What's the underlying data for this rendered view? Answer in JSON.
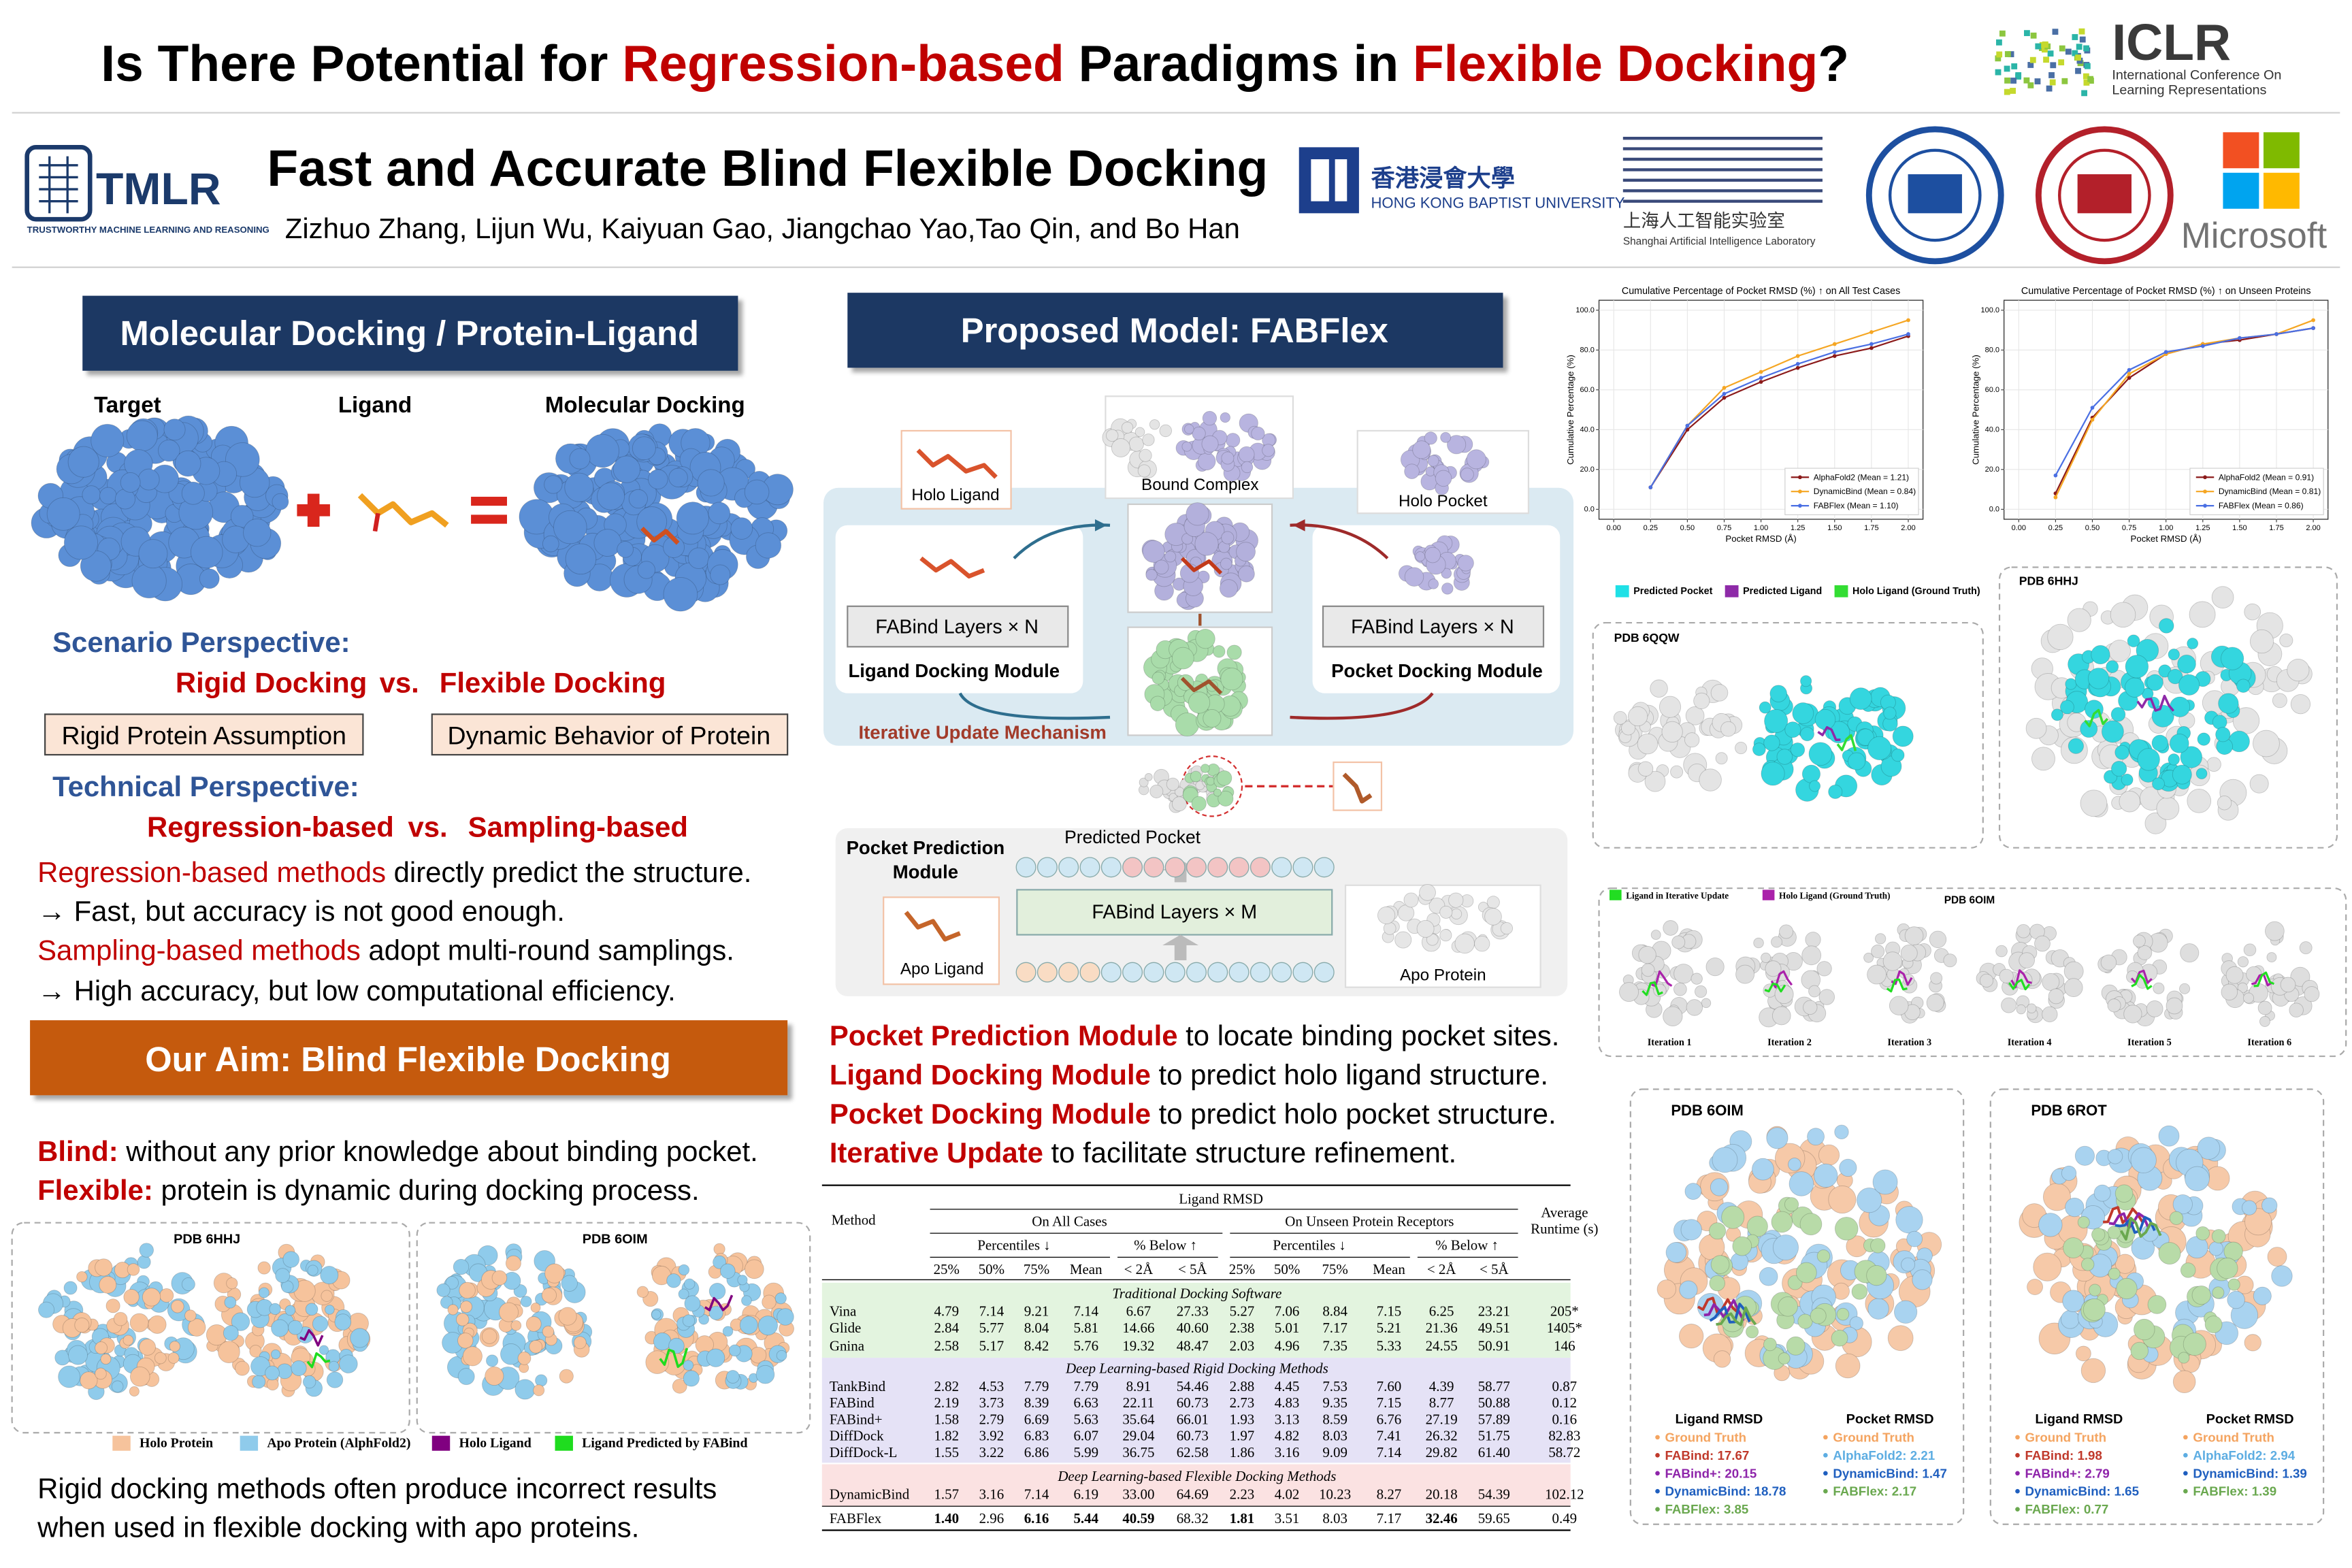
{
  "header": {
    "title": [
      "Is There Potential for ",
      "Regression-based",
      " Paradigms in ",
      "Flexible Docking",
      "?"
    ],
    "conference": "ICLR",
    "conference_full": [
      "International Conference On",
      "Learning Representations"
    ]
  },
  "paper": {
    "title": "Fast and Accurate Blind Flexible Docking",
    "authors": "Zizhuo Zhang, Lijun Wu, Kaiyuan Gao, Jiangchao Yao,Tao Qin, and Bo Han"
  },
  "affiliations": {
    "tmlr": "TMLR",
    "tmlr_full": "TRUSTWORTHY MACHINE LEARNING AND REASONING",
    "hkbu_cn": "香港浸會大學",
    "hkbu_en": "HONG KONG BAPTIST UNIVERSITY",
    "shlab_cn": "上海人工智能实验室",
    "shlab_en": "Shanghai Artificial Intelligence Laboratory",
    "microsoft": "Microsoft"
  },
  "docking": {
    "heading": "Molecular Docking / Protein-Ligand",
    "labels": [
      "Target",
      "Ligand",
      "Molecular Docking"
    ],
    "scenario": "Scenario Perspective:",
    "scenario_line": [
      "Rigid Docking",
      "vs.",
      "Flexible Docking"
    ],
    "assumptions": [
      "Rigid Protein Assumption",
      "Dynamic Behavior of Protein"
    ],
    "technical": "Technical Perspective:",
    "technical_line": [
      "Regression-based",
      "vs.",
      "Sampling-based"
    ],
    "notes": [
      [
        "Regression-based methods",
        " directly predict the structure."
      ],
      [
        "→ Fast, but accuracy is not good enough."
      ],
      [
        "Sampling-based methods",
        " adopt multi-round samplings."
      ],
      [
        "→ High accuracy, but low computational efficiency."
      ]
    ]
  },
  "aim": {
    "heading": "Our Aim: Blind Flexible Docking",
    "points": [
      [
        "Blind:",
        " without any prior knowledge about binding pocket."
      ],
      [
        "Flexible:",
        " protein is dynamic during docking process."
      ]
    ],
    "panels": [
      "PDB 6HHJ",
      "PDB 6OIM"
    ],
    "legend": [
      {
        "label": "Holo Protein",
        "color": "#f6c39c"
      },
      {
        "label": "Apo Protein (AlphFold2)",
        "color": "#8fcbeb"
      },
      {
        "label": "Holo Ligand",
        "color": "#800080"
      },
      {
        "label": "Ligand Predicted by FABind",
        "color": "#1fdc1f"
      }
    ],
    "conclusion": [
      "Rigid docking methods often produce incorrect results",
      "when used in flexible docking with apo proteins."
    ]
  },
  "model": {
    "heading": "Proposed Model: FABFlex",
    "diagram": {
      "holo_ligand": "Holo Ligand",
      "bound_complex": "Bound Complex",
      "holo_pocket": "Holo Pocket",
      "ligand_layers": "FABind Layers × N",
      "ligand_module": "Ligand Docking Module",
      "pocket_layers": "FABind Layers × N",
      "pocket_module": "Pocket Docking Module",
      "iterative": "Iterative Update Mechanism",
      "predicted_pocket": "Predicted Pocket",
      "pocket_prediction": [
        "Pocket Prediction",
        "Module"
      ],
      "prediction_layers": "FABind Layers × M",
      "apo_ligand": "Apo Ligand",
      "apo_protein": "Apo Protein"
    },
    "bullets": [
      [
        "Pocket Prediction Module",
        " to locate binding pocket sites."
      ],
      [
        "Ligand Docking Module",
        " to predict holo ligand structure."
      ],
      [
        "Pocket Docking Module",
        " to predict holo pocket structure."
      ],
      [
        "Iterative Update",
        " to facilitate structure refinement."
      ]
    ]
  },
  "table": {
    "title": "Ligand RMSD",
    "method": "Method",
    "groups": [
      "On All Cases",
      "On Unseen Protein Receptors"
    ],
    "subgroups": [
      "Percentiles ↓",
      "% Below ↑",
      "Percentiles ↓",
      "% Below ↑"
    ],
    "runtime": [
      "Average",
      "Runtime (s)"
    ],
    "columns": [
      "25%",
      "50%",
      "75%",
      "Mean",
      "< 2Å",
      "< 5Å",
      "25%",
      "50%",
      "75%",
      "Mean",
      "< 2Å",
      "< 5Å"
    ],
    "sections": [
      {
        "name": "Traditional Docking Software",
        "color": "#e3f4df",
        "rows": [
          [
            "Vina",
            "4.79",
            "7.14",
            "9.21",
            "7.14",
            "6.67",
            "27.33",
            "5.27",
            "7.06",
            "8.84",
            "7.15",
            "6.25",
            "23.21",
            "205*"
          ],
          [
            "Glide",
            "2.84",
            "5.77",
            "8.04",
            "5.81",
            "14.66",
            "40.60",
            "2.38",
            "5.01",
            "7.17",
            "5.21",
            "21.36",
            "49.51",
            "1405*"
          ],
          [
            "Gnina",
            "2.58",
            "5.17",
            "8.42",
            "5.76",
            "19.32",
            "48.47",
            "2.03",
            "4.96",
            "7.35",
            "5.33",
            "24.55",
            "50.91",
            "146"
          ]
        ]
      },
      {
        "name": "Deep Learning-based Rigid Docking Methods",
        "color": "#e5e2f6",
        "rows": [
          [
            "TankBind",
            "2.82",
            "4.53",
            "7.79",
            "7.79",
            "8.91",
            "54.46",
            "2.88",
            "4.45",
            "7.53",
            "7.60",
            "4.39",
            "58.77",
            "0.87"
          ],
          [
            "FABind",
            "2.19",
            "3.73",
            "8.39",
            "6.63",
            "22.11",
            "60.73",
            "2.73",
            "4.83",
            "9.35",
            "7.15",
            "8.77",
            "50.88",
            "0.12"
          ],
          [
            "FABind+",
            "1.58",
            "2.79",
            "6.69",
            "5.63",
            "35.64",
            "66.01",
            "1.93",
            "3.13",
            "8.59",
            "6.76",
            "27.19",
            "57.89",
            "0.16"
          ],
          [
            "DiffDock",
            "1.82",
            "3.92",
            "6.83",
            "6.07",
            "29.04",
            "60.73",
            "1.97",
            "4.82",
            "8.03",
            "7.41",
            "26.32",
            "51.75",
            "82.83"
          ],
          [
            "DiffDock-L",
            "1.55",
            "3.22",
            "6.86",
            "5.99",
            "36.75",
            "62.58",
            "1.86",
            "3.16",
            "9.09",
            "7.14",
            "29.82",
            "61.40",
            "58.72"
          ]
        ]
      },
      {
        "name": "Deep Learning-based Flexible Docking Methods",
        "color": "#fbe2e2",
        "rows": [
          [
            "DynamicBind",
            "1.57",
            "3.16",
            "7.14",
            "6.19",
            "33.00",
            "64.69",
            "2.23",
            "4.02",
            "10.23",
            "8.27",
            "20.18",
            "54.39",
            "102.12"
          ],
          [
            "FABFlex",
            "1.40",
            "2.96",
            "6.16",
            "5.44",
            "40.59",
            "68.32",
            "1.81",
            "3.51",
            "8.03",
            "7.17",
            "32.46",
            "59.65",
            "0.49"
          ]
        ]
      }
    ]
  },
  "results": {
    "charts": [
      {
        "type": "line",
        "title": "Cumulative Percentage of Pocket RMSD (%) ↑ on All Test Cases",
        "xlabel": "Pocket RMSD (Å)",
        "ylabel": "Cumulative Percentage (%)",
        "x": [
          0.25,
          0.5,
          0.75,
          1.0,
          1.25,
          1.5,
          1.75,
          2.0
        ],
        "xlim": [
          -0.1,
          2.1
        ],
        "ylim": [
          -5,
          105
        ],
        "grid": true,
        "xticks": [
          {
            "value": 0,
            "label": "0.00"
          },
          {
            "value": 0.25,
            "label": "0.25"
          },
          {
            "value": 0.5,
            "label": "0.50"
          },
          {
            "value": 0.75,
            "label": "0.75"
          },
          {
            "value": 1,
            "label": "1.00"
          },
          {
            "value": 1.25,
            "label": "1.25"
          },
          {
            "value": 1.5,
            "label": "1.50"
          },
          {
            "value": 1.75,
            "label": "1.75"
          },
          {
            "value": 2,
            "label": "2.00"
          }
        ],
        "yticks": [
          {
            "value": 0,
            "label": "0.0"
          },
          {
            "value": 20,
            "label": "20.0"
          },
          {
            "value": 40,
            "label": "40.0"
          },
          {
            "value": 60,
            "label": "60.0"
          },
          {
            "value": 80,
            "label": "80.0"
          },
          {
            "value": 100,
            "label": "100.0"
          }
        ],
        "series": [
          {
            "name": "AlphaFold2 (Mean = 1.21)",
            "color": "#8b1a1a",
            "values": [
              11,
              40,
              56,
              64,
              71,
              77,
              81,
              87
            ]
          },
          {
            "name": "DynamicBind (Mean = 0.84)",
            "color": "#f5a623",
            "values": [
              11,
              42,
              61,
              69,
              77,
              83,
              89,
              95
            ]
          },
          {
            "name": "FABFlex (Mean = 1.10)",
            "color": "#4a6fe3",
            "values": [
              11,
              42,
              58,
              66,
              73,
              79,
              83,
              88
            ]
          }
        ]
      },
      {
        "type": "line",
        "title": "Cumulative Percentage of Pocket RMSD (%) ↑ on Unseen Proteins",
        "xlabel": "Pocket RMSD (Å)",
        "ylabel": "Cumulative Percentage (%)",
        "x": [
          0.25,
          0.5,
          0.75,
          1.0,
          1.25,
          1.5,
          1.75,
          2.0
        ],
        "xlim": [
          -0.1,
          2.1
        ],
        "ylim": [
          -5,
          105
        ],
        "grid": true,
        "xticks": [
          {
            "value": 0,
            "label": "0.00"
          },
          {
            "value": 0.25,
            "label": "0.25"
          },
          {
            "value": 0.5,
            "label": "0.50"
          },
          {
            "value": 0.75,
            "label": "0.75"
          },
          {
            "value": 1,
            "label": "1.00"
          },
          {
            "value": 1.25,
            "label": "1.25"
          },
          {
            "value": 1.5,
            "label": "1.50"
          },
          {
            "value": 1.75,
            "label": "1.75"
          },
          {
            "value": 2,
            "label": "2.00"
          }
        ],
        "yticks": [
          {
            "value": 0,
            "label": "0.0"
          },
          {
            "value": 20,
            "label": "20.0"
          },
          {
            "value": 40,
            "label": "40.0"
          },
          {
            "value": 60,
            "label": "60.0"
          },
          {
            "value": 80,
            "label": "80.0"
          },
          {
            "value": 100,
            "label": "100.0"
          }
        ],
        "series": [
          {
            "name": "AlphaFold2 (Mean = 0.91)",
            "color": "#8b1a1a",
            "values": [
              8,
              46,
              66,
              78,
              83,
              85,
              88,
              91
            ]
          },
          {
            "name": "DynamicBind (Mean = 0.81)",
            "color": "#f5a623",
            "values": [
              6,
              45,
              68,
              78,
              83,
              86,
              88,
              95
            ]
          },
          {
            "name": "FABFlex (Mean = 0.86)",
            "color": "#4a6fe3",
            "values": [
              17,
              51,
              70,
              79,
              82,
              86,
              88,
              91
            ]
          }
        ]
      }
    ]
  },
  "cases": {
    "legend": [
      {
        "label": "Predicted Pocket",
        "color": "#1fe0e6"
      },
      {
        "label": "Predicted Ligand",
        "color": "#8e2aa8"
      },
      {
        "label": "Holo Ligand (Ground Truth)",
        "color": "#33dd33"
      }
    ],
    "panels": [
      "PDB 6QQW",
      "PDB 6HHJ"
    ]
  },
  "iterations": {
    "legend": [
      {
        "label": "Ligand in Iterative Update",
        "color": "#22dd22"
      },
      {
        "label": "Holo Ligand (Ground Truth)",
        "color": "#aa22aa"
      }
    ],
    "title": "PDB 6OIM",
    "steps": [
      "Iteration 1",
      "Iteration 2",
      "Iteration 3",
      "Iteration 4",
      "Iteration 5",
      "Iteration 6"
    ]
  },
  "comparisons": [
    {
      "title": "PDB 6OIM",
      "ligand_heading": "Ligand RMSD",
      "pocket_heading": "Pocket RMSD",
      "ligand": [
        {
          "label": "Ground Truth",
          "color": "#f4a460"
        },
        {
          "label": "FABind: 17.67",
          "color": "#c0392b"
        },
        {
          "label": "FABind+: 20.15",
          "color": "#8e24aa"
        },
        {
          "label": "DynamicBind: 18.78",
          "color": "#1f5fbf"
        },
        {
          "label": "FABFlex: 3.85",
          "color": "#6aa84f"
        }
      ],
      "pocket": [
        {
          "label": "Ground Truth",
          "color": "#f4a460"
        },
        {
          "label": "AlphaFold2: 2.21",
          "color": "#5dade2"
        },
        {
          "label": "DynamicBind: 1.47",
          "color": "#1f5fbf"
        },
        {
          "label": "FABFlex: 2.17",
          "color": "#6aa84f"
        }
      ]
    },
    {
      "title": "PDB 6ROT",
      "ligand_heading": "Ligand RMSD",
      "pocket_heading": "Pocket RMSD",
      "ligand": [
        {
          "label": "Ground Truth",
          "color": "#f4a460"
        },
        {
          "label": "FABind: 1.98",
          "color": "#c0392b"
        },
        {
          "label": "FABind+: 2.79",
          "color": "#8e24aa"
        },
        {
          "label": "DynamicBind: 1.65",
          "color": "#1f5fbf"
        },
        {
          "label": "FABFlex: 0.77",
          "color": "#6aa84f"
        }
      ],
      "pocket": [
        {
          "label": "Ground Truth",
          "color": "#f4a460"
        },
        {
          "label": "AlphaFold2: 2.94",
          "color": "#5dade2"
        },
        {
          "label": "DynamicBind: 1.39",
          "color": "#1f5fbf"
        },
        {
          "label": "FABFlex: 1.39",
          "color": "#6aa84f"
        }
      ]
    }
  ]
}
